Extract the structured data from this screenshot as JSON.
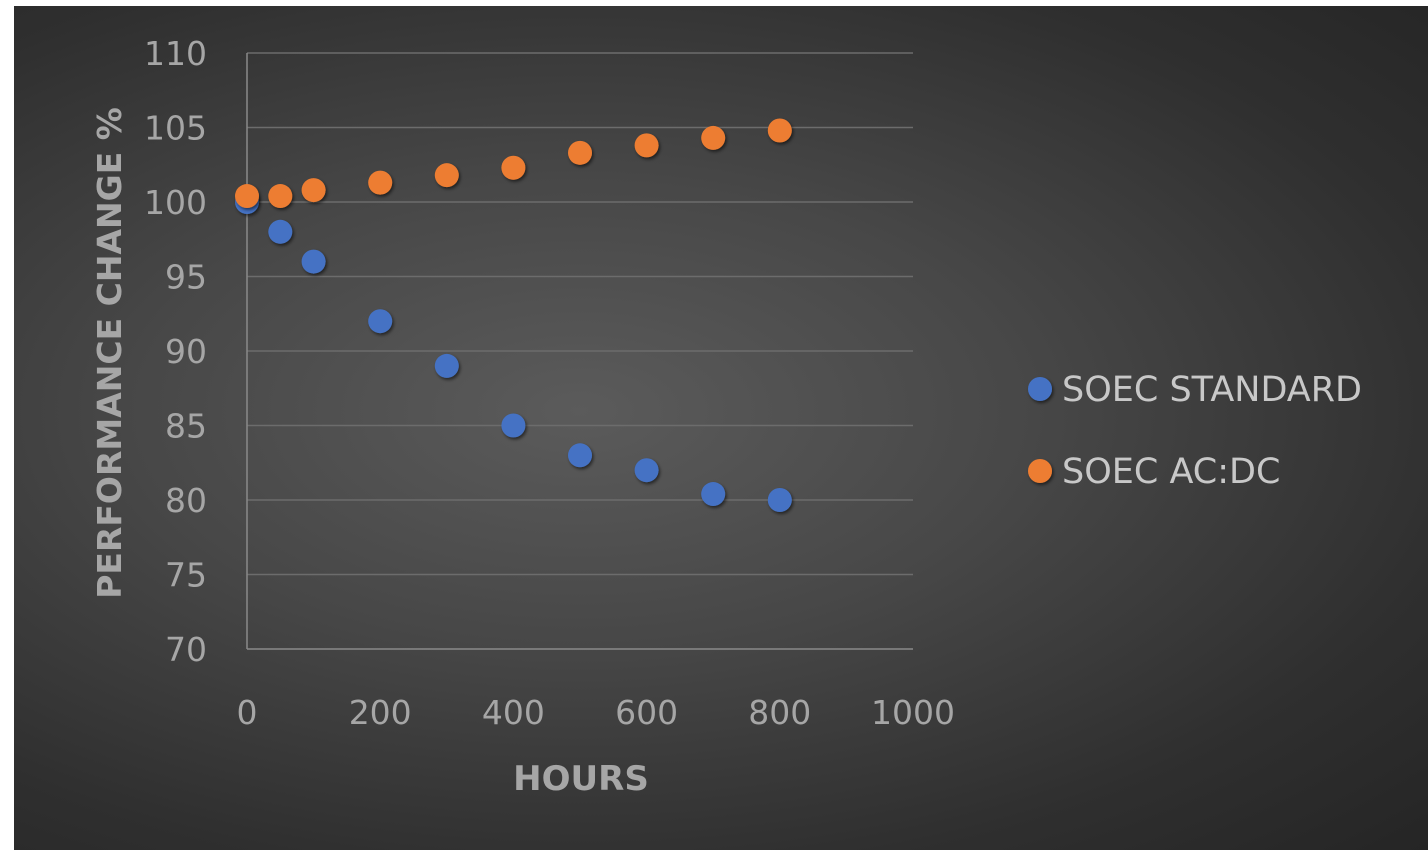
{
  "chart_data": {
    "type": "scatter",
    "title": "",
    "xlabel": "HOURS",
    "ylabel": "PERFORMANCE CHANGE %",
    "xlim": [
      0,
      1000
    ],
    "ylim": [
      70,
      110
    ],
    "xticks": [
      "0",
      "200",
      "400",
      "600",
      "800",
      "1000"
    ],
    "yticks": [
      "70",
      "75",
      "80",
      "85",
      "90",
      "95",
      "100",
      "105",
      "110"
    ],
    "grid": "horizontal",
    "legend_position": "right",
    "series": [
      {
        "name": "SOEC STANDARD",
        "color": "#4472c4",
        "points": [
          {
            "x": 0,
            "y": 100
          },
          {
            "x": 50,
            "y": 98
          },
          {
            "x": 100,
            "y": 96
          },
          {
            "x": 200,
            "y": 92
          },
          {
            "x": 300,
            "y": 89
          },
          {
            "x": 400,
            "y": 85
          },
          {
            "x": 500,
            "y": 83
          },
          {
            "x": 600,
            "y": 82
          },
          {
            "x": 700,
            "y": 80.4
          },
          {
            "x": 800,
            "y": 80
          }
        ]
      },
      {
        "name": "SOEC AC:DC",
        "color": "#ed7d31",
        "points": [
          {
            "x": 0,
            "y": 100.4
          },
          {
            "x": 50,
            "y": 100.4
          },
          {
            "x": 100,
            "y": 100.8
          },
          {
            "x": 200,
            "y": 101.3
          },
          {
            "x": 300,
            "y": 101.8
          },
          {
            "x": 400,
            "y": 102.3
          },
          {
            "x": 500,
            "y": 103.3
          },
          {
            "x": 600,
            "y": 103.8
          },
          {
            "x": 700,
            "y": 104.3
          },
          {
            "x": 800,
            "y": 104.8
          }
        ]
      }
    ]
  }
}
